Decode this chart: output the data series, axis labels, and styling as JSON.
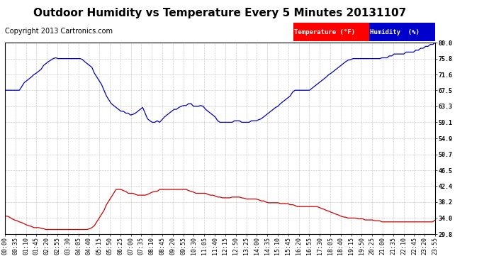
{
  "title": "Outdoor Humidity vs Temperature Every 5 Minutes 20131107",
  "copyright": "Copyright 2013 Cartronics.com",
  "legend_temp_label": "Temperature (°F)",
  "legend_humidity_label": "Humidity  (%)",
  "legend_temp_bg": "#ff0000",
  "legend_humidity_bg": "#0000cc",
  "line_temp_color": "#cc0000",
  "line_humidity_color": "#0000bb",
  "ylim": [
    29.8,
    80.0
  ],
  "yticks": [
    29.8,
    34.0,
    38.2,
    42.4,
    46.5,
    50.7,
    54.9,
    59.1,
    63.3,
    67.5,
    71.6,
    75.8,
    80.0
  ],
  "background_color": "#ffffff",
  "plot_bg_color": "#ffffff",
  "grid_color": "#cccccc",
  "title_fontsize": 11,
  "copyright_fontsize": 7,
  "tick_fontsize": 6,
  "humidity_data": [
    67.5,
    67.5,
    67.5,
    67.5,
    67.5,
    67.5,
    67.5,
    68.5,
    69.5,
    70.0,
    70.5,
    71.0,
    71.6,
    72.0,
    72.5,
    73.0,
    74.0,
    74.5,
    75.0,
    75.4,
    75.8,
    76.0,
    75.8,
    75.8,
    75.8,
    75.8,
    75.8,
    75.8,
    75.8,
    75.8,
    75.8,
    75.8,
    75.6,
    75.0,
    74.5,
    74.0,
    73.5,
    72.0,
    71.0,
    70.0,
    69.0,
    67.5,
    66.0,
    65.0,
    64.0,
    63.5,
    63.0,
    62.5,
    62.0,
    62.0,
    61.5,
    61.5,
    61.0,
    61.2,
    61.5,
    62.0,
    62.5,
    63.0,
    61.5,
    60.0,
    59.5,
    59.1,
    59.1,
    59.5,
    59.1,
    59.8,
    60.5,
    61.0,
    61.5,
    62.0,
    62.5,
    62.5,
    63.0,
    63.3,
    63.5,
    63.5,
    64.0,
    64.0,
    63.3,
    63.3,
    63.3,
    63.5,
    63.3,
    62.5,
    62.0,
    61.5,
    61.0,
    60.5,
    59.5,
    59.1,
    59.1,
    59.1,
    59.1,
    59.1,
    59.1,
    59.5,
    59.5,
    59.5,
    59.1,
    59.1,
    59.1,
    59.1,
    59.5,
    59.5,
    59.5,
    59.8,
    60.0,
    60.5,
    61.0,
    61.5,
    62.0,
    62.5,
    63.0,
    63.3,
    64.0,
    64.5,
    65.0,
    65.5,
    66.0,
    67.0,
    67.5,
    67.5,
    67.5,
    67.5,
    67.5,
    67.5,
    67.5,
    68.0,
    68.5,
    69.0,
    69.5,
    70.0,
    70.5,
    71.0,
    71.6,
    72.0,
    72.5,
    73.0,
    73.5,
    74.0,
    74.5,
    75.0,
    75.4,
    75.5,
    75.8,
    75.8,
    75.8,
    75.8,
    75.8,
    75.8,
    75.8,
    75.8,
    75.8,
    75.8,
    75.8,
    75.8,
    76.0,
    76.0,
    76.0,
    76.5,
    76.5,
    77.0,
    77.0,
    77.0,
    77.0,
    77.0,
    77.5,
    77.5,
    77.5,
    77.5,
    78.0,
    78.0,
    78.5,
    78.5,
    79.0,
    79.0,
    79.5,
    79.5,
    80.0
  ],
  "temp_data": [
    34.5,
    34.5,
    34.2,
    33.8,
    33.5,
    33.3,
    33.0,
    32.8,
    32.5,
    32.2,
    32.0,
    31.8,
    31.5,
    31.5,
    31.5,
    31.3,
    31.2,
    31.0,
    31.0,
    31.0,
    31.0,
    31.0,
    31.0,
    31.0,
    31.0,
    31.0,
    31.0,
    31.0,
    31.0,
    31.0,
    31.0,
    31.0,
    31.0,
    31.0,
    31.0,
    31.2,
    31.5,
    32.0,
    33.0,
    34.0,
    35.0,
    36.0,
    37.5,
    38.5,
    39.5,
    40.5,
    41.5,
    41.5,
    41.5,
    41.2,
    41.0,
    40.5,
    40.5,
    40.5,
    40.2,
    40.0,
    40.0,
    40.0,
    40.0,
    40.2,
    40.5,
    40.8,
    41.0,
    41.0,
    41.5,
    41.5,
    41.5,
    41.5,
    41.5,
    41.5,
    41.5,
    41.5,
    41.5,
    41.5,
    41.5,
    41.5,
    41.2,
    41.0,
    40.8,
    40.5,
    40.5,
    40.5,
    40.5,
    40.5,
    40.2,
    40.0,
    40.0,
    39.8,
    39.5,
    39.5,
    39.3,
    39.3,
    39.3,
    39.3,
    39.5,
    39.5,
    39.5,
    39.5,
    39.3,
    39.2,
    39.0,
    39.0,
    39.0,
    39.0,
    39.0,
    38.8,
    38.5,
    38.5,
    38.2,
    38.0,
    38.0,
    38.0,
    38.0,
    38.0,
    37.8,
    37.8,
    37.8,
    37.8,
    37.5,
    37.5,
    37.3,
    37.0,
    37.0,
    37.0,
    37.0,
    37.0,
    37.0,
    37.0,
    37.0,
    37.0,
    36.8,
    36.5,
    36.3,
    36.0,
    35.8,
    35.5,
    35.3,
    35.0,
    34.8,
    34.5,
    34.3,
    34.2,
    34.0,
    34.0,
    34.0,
    34.0,
    33.8,
    33.8,
    33.8,
    33.5,
    33.5,
    33.5,
    33.5,
    33.3,
    33.3,
    33.3,
    33.0,
    33.0,
    33.0,
    33.0,
    33.0,
    33.0,
    33.0,
    33.0,
    33.0,
    33.0,
    33.0,
    33.0,
    33.0,
    33.0,
    33.0,
    33.0,
    33.0,
    33.0,
    33.0,
    33.0,
    33.0,
    33.0,
    33.5
  ],
  "x_tick_labels": [
    "00:00",
    "00:35",
    "01:10",
    "01:45",
    "02:20",
    "02:55",
    "03:30",
    "04:05",
    "04:40",
    "05:15",
    "05:50",
    "06:25",
    "07:00",
    "07:35",
    "08:10",
    "08:45",
    "09:20",
    "09:55",
    "10:30",
    "11:05",
    "11:40",
    "12:15",
    "12:50",
    "13:25",
    "14:00",
    "14:35",
    "15:10",
    "15:45",
    "16:20",
    "16:55",
    "17:30",
    "18:05",
    "18:40",
    "19:15",
    "19:50",
    "20:25",
    "21:00",
    "21:35",
    "22:10",
    "22:45",
    "23:20",
    "23:55"
  ]
}
